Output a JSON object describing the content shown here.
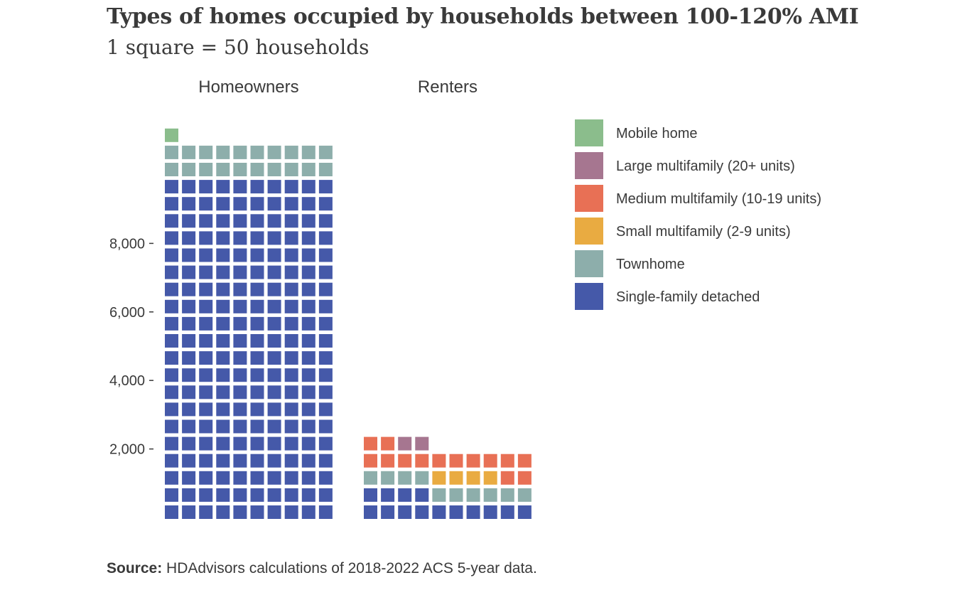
{
  "title": "Types of homes occupied by households between 100-120% AMI",
  "subtitle": "1 square = 50 households",
  "source": {
    "label": "Source:",
    "text": "HDAdvisors calculations of 2018-2022 ACS 5-year data."
  },
  "chart_data": {
    "type": "waffle",
    "title": "Types of homes occupied by households between 100-120% AMI",
    "subtitle": "1 square = 50 households",
    "square_value": 50,
    "grid_columns": 10,
    "y_ticks": [
      2000,
      4000,
      6000,
      8000
    ],
    "y_tick_labels": [
      "2,000",
      "4,000",
      "6,000",
      "8,000"
    ],
    "legend_position": "right",
    "panels": [
      {
        "name": "Homeowners",
        "squares": {
          "Single-family detached": 200,
          "Townhome": 20,
          "Small multifamily (2-9 units)": 0,
          "Medium multifamily (10-19 units)": 0,
          "Large multifamily (20+ units)": 0,
          "Mobile home": 1
        }
      },
      {
        "name": "Renters",
        "squares": {
          "Single-family detached": 14,
          "Townhome": 10,
          "Small multifamily (2-9 units)": 4,
          "Medium multifamily (10-19 units)": 14,
          "Large multifamily (20+ units)": 2,
          "Mobile home": 0
        }
      }
    ],
    "series": [
      {
        "name": "Single-family detached",
        "color": "#4559a9"
      },
      {
        "name": "Townhome",
        "color": "#8daeab"
      },
      {
        "name": "Small multifamily (2-9 units)",
        "color": "#e9ab41"
      },
      {
        "name": "Medium multifamily (10-19 units)",
        "color": "#e87055"
      },
      {
        "name": "Large multifamily (20+ units)",
        "color": "#a67690"
      },
      {
        "name": "Mobile home",
        "color": "#8bbd8c"
      }
    ],
    "legend_order": [
      "Mobile home",
      "Large multifamily (20+ units)",
      "Medium multifamily (10-19 units)",
      "Small multifamily (2-9 units)",
      "Townhome",
      "Single-family detached"
    ]
  }
}
